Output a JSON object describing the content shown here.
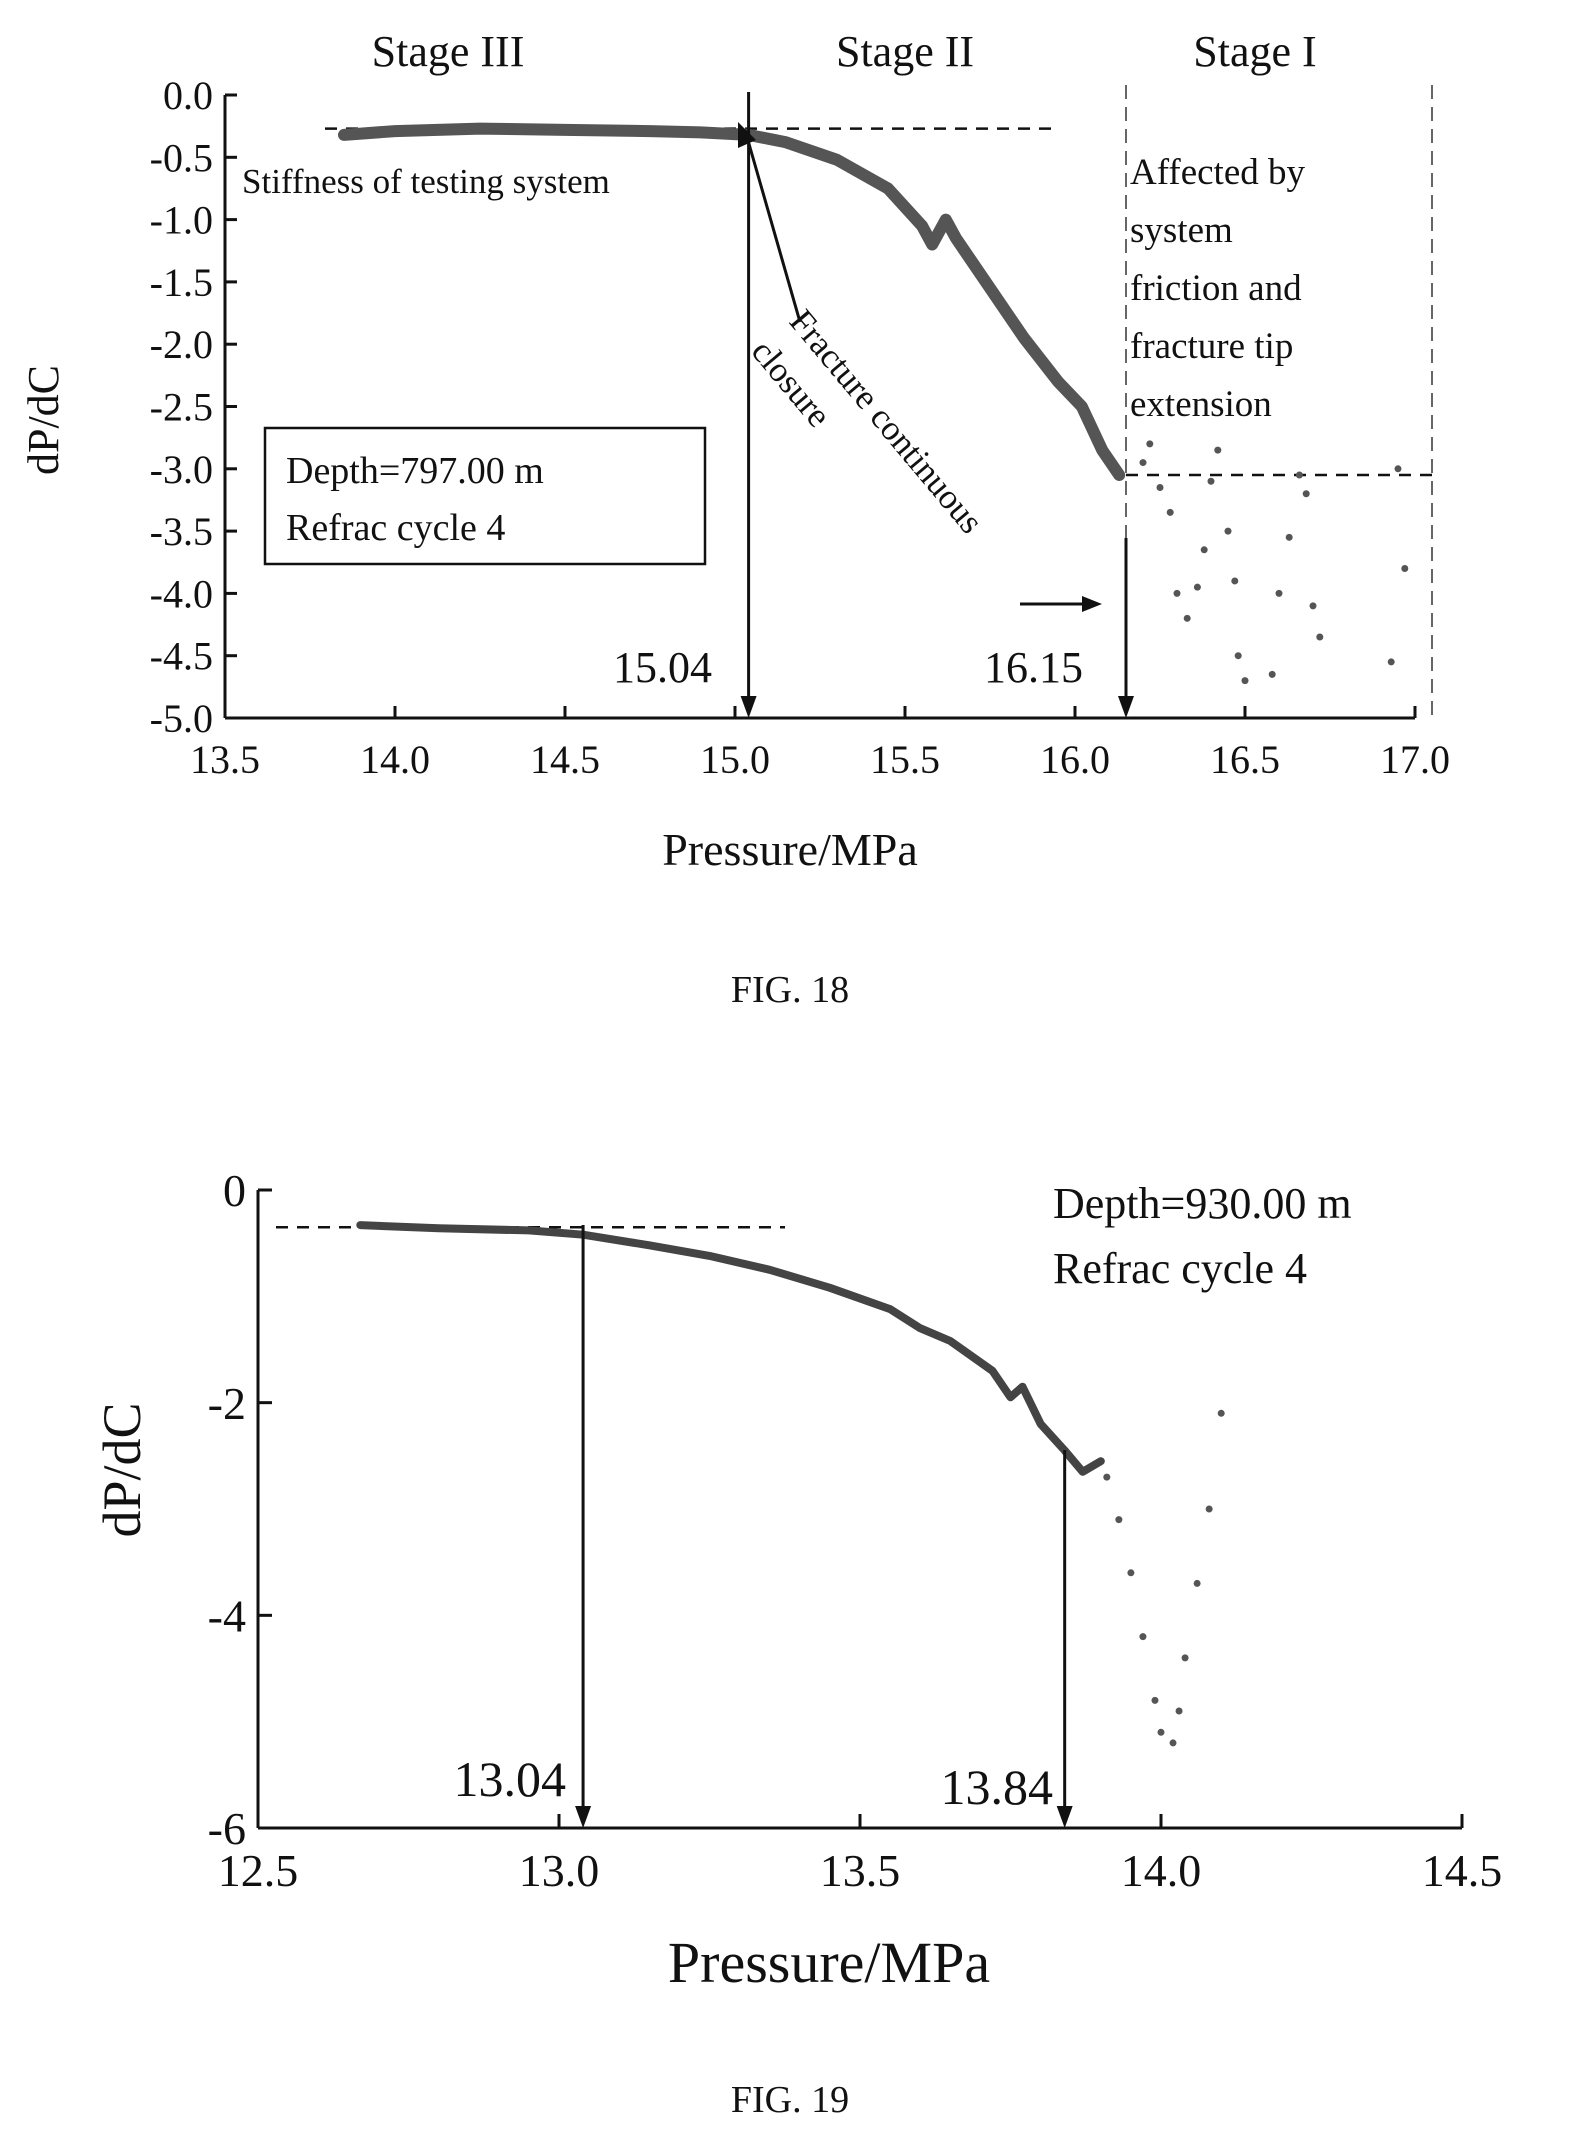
{
  "figures": [
    {
      "caption": "FIG. 18",
      "xlabel": "Pressure/MPa",
      "ylabel": "dP/dC",
      "box": [
        "Depth=797.00 m",
        "Refrac cycle 4"
      ],
      "stages": [
        "Stage III",
        "Stage II",
        "Stage I"
      ],
      "annotations": {
        "stiffness": "Stiffness of testing system",
        "affected": [
          "Affected by",
          "system",
          "friction and",
          "fracture tip",
          "extension"
        ],
        "fracture": [
          "Fracture continuous",
          "closure"
        ],
        "m1": "15.04",
        "m2": "16.15"
      }
    },
    {
      "caption": "FIG. 19",
      "xlabel": "Pressure/MPa",
      "ylabel": "dP/dC",
      "box": [
        "Depth=930.00 m",
        "Refrac cycle 4"
      ],
      "annotations": {
        "m1": "13.04",
        "m2": "13.84"
      }
    }
  ],
  "chart_data": [
    {
      "type": "scatter",
      "xlabel": "Pressure/MPa",
      "ylabel": "dP/dC",
      "xlim": [
        13.5,
        17.0
      ],
      "ylim": [
        -5.0,
        0.0
      ],
      "xticks": [
        "13.5",
        "14.0",
        "14.5",
        "15.0",
        "15.5",
        "16.0",
        "16.5",
        "17.0"
      ],
      "yticks": [
        "0.0",
        "-0.5",
        "-1.0",
        "-1.5",
        "-2.0",
        "-2.5",
        "-3.0",
        "-3.5",
        "-4.0",
        "-4.5",
        "-5.0"
      ],
      "reference_lines": {
        "stiffness_y": -0.27,
        "lower_y": -3.05,
        "closure_x": [
          15.04,
          16.15
        ],
        "stage_bounds_x": [
          16.15,
          17.05
        ]
      },
      "series": [
        {
          "points": [
            [
              13.85,
              -0.32
            ],
            [
              14.0,
              -0.29
            ],
            [
              14.25,
              -0.27
            ],
            [
              14.5,
              -0.28
            ],
            [
              14.75,
              -0.29
            ],
            [
              14.9,
              -0.3
            ],
            [
              15.04,
              -0.32
            ],
            [
              15.15,
              -0.38
            ],
            [
              15.3,
              -0.52
            ],
            [
              15.45,
              -0.75
            ],
            [
              15.55,
              -1.05
            ],
            [
              15.58,
              -1.2
            ],
            [
              15.62,
              -1.0
            ],
            [
              15.65,
              -1.15
            ],
            [
              15.75,
              -1.55
            ],
            [
              15.85,
              -1.95
            ],
            [
              15.95,
              -2.3
            ],
            [
              16.02,
              -2.5
            ],
            [
              16.08,
              -2.85
            ],
            [
              16.13,
              -3.05
            ]
          ],
          "scatter_points": [
            [
              16.2,
              -2.95
            ],
            [
              16.22,
              -2.8
            ],
            [
              16.25,
              -3.15
            ],
            [
              16.28,
              -3.35
            ],
            [
              16.3,
              -4.0
            ],
            [
              16.33,
              -4.2
            ],
            [
              16.36,
              -3.95
            ],
            [
              16.38,
              -3.65
            ],
            [
              16.4,
              -3.1
            ],
            [
              16.42,
              -2.85
            ],
            [
              16.45,
              -3.5
            ],
            [
              16.47,
              -3.9
            ],
            [
              16.48,
              -4.5
            ],
            [
              16.5,
              -4.7
            ],
            [
              16.58,
              -4.65
            ],
            [
              16.6,
              -4.0
            ],
            [
              16.63,
              -3.55
            ],
            [
              16.66,
              -3.05
            ],
            [
              16.68,
              -3.2
            ],
            [
              16.7,
              -4.1
            ],
            [
              16.72,
              -4.35
            ],
            [
              16.95,
              -3.0
            ],
            [
              16.97,
              -3.8
            ],
            [
              16.93,
              -4.55
            ]
          ]
        }
      ]
    },
    {
      "type": "scatter",
      "xlabel": "Pressure/MPa",
      "ylabel": "dP/dC",
      "xlim": [
        12.5,
        14.5
      ],
      "ylim": [
        -6,
        0
      ],
      "xticks": [
        "12.5",
        "13.0",
        "13.5",
        "14.0",
        "14.5"
      ],
      "yticks": [
        "0",
        "-2",
        "-4",
        "-6"
      ],
      "reference_lines": {
        "stiffness_y": -0.35,
        "closure_x": [
          13.04,
          13.84
        ]
      },
      "series": [
        {
          "points": [
            [
              12.67,
              -0.33
            ],
            [
              12.8,
              -0.36
            ],
            [
              12.95,
              -0.38
            ],
            [
              13.04,
              -0.42
            ],
            [
              13.15,
              -0.52
            ],
            [
              13.25,
              -0.62
            ],
            [
              13.35,
              -0.75
            ],
            [
              13.45,
              -0.92
            ],
            [
              13.55,
              -1.12
            ],
            [
              13.6,
              -1.3
            ],
            [
              13.65,
              -1.42
            ],
            [
              13.72,
              -1.7
            ],
            [
              13.75,
              -1.95
            ],
            [
              13.77,
              -1.85
            ],
            [
              13.8,
              -2.2
            ],
            [
              13.84,
              -2.45
            ],
            [
              13.87,
              -2.65
            ],
            [
              13.9,
              -2.55
            ]
          ],
          "scatter_points": [
            [
              13.91,
              -2.7
            ],
            [
              13.93,
              -3.1
            ],
            [
              13.95,
              -3.6
            ],
            [
              13.97,
              -4.2
            ],
            [
              13.99,
              -4.8
            ],
            [
              14.0,
              -5.1
            ],
            [
              14.02,
              -5.2
            ],
            [
              14.03,
              -4.9
            ],
            [
              14.04,
              -4.4
            ],
            [
              14.06,
              -3.7
            ],
            [
              14.08,
              -3.0
            ],
            [
              14.1,
              -2.1
            ]
          ]
        }
      ]
    }
  ]
}
